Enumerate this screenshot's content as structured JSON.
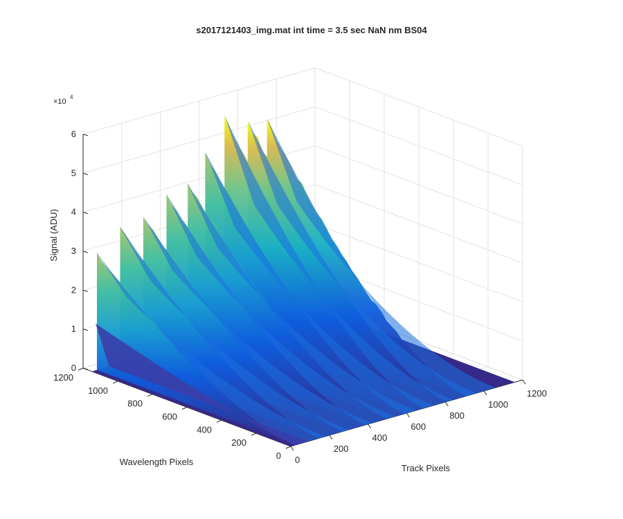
{
  "chart_data": {
    "type": "surface",
    "title": "s2017121403_img.mat int time = 3.5 sec  NaN nm BS04",
    "zlabel": "Signal (ADU)",
    "z_exponent_label": "×10",
    "z_exponent_power": "4",
    "xlabel": "Track Pixels",
    "ylabel": "Wavelength Pixels",
    "x_ticks": [
      "0",
      "200",
      "400",
      "600",
      "800",
      "1000",
      "1200"
    ],
    "y_ticks": [
      "0",
      "200",
      "400",
      "600",
      "800",
      "1000",
      "1200"
    ],
    "z_ticks": [
      "0",
      "1",
      "2",
      "3",
      "4",
      "5",
      "6"
    ],
    "xlim": [
      0,
      1200
    ],
    "ylim": [
      0,
      1200
    ],
    "zlim": [
      0,
      60000
    ],
    "grid": true,
    "colormap": "parula",
    "colors": {
      "low": "#352a87",
      "mid": "#0f8ad6",
      "midhigh": "#2ebcb4",
      "high": "#a5be6a",
      "peak": "#f9fb0e"
    },
    "peaks": [
      {
        "x": 0,
        "signal": 30000
      },
      {
        "x": 120,
        "signal": 35000
      },
      {
        "x": 240,
        "signal": 36000
      },
      {
        "x": 360,
        "signal": 40000
      },
      {
        "x": 470,
        "signal": 41000
      },
      {
        "x": 560,
        "signal": 48000
      },
      {
        "x": 660,
        "signal": 56000
      },
      {
        "x": 780,
        "signal": 53000
      },
      {
        "x": 880,
        "signal": 52000
      }
    ]
  }
}
